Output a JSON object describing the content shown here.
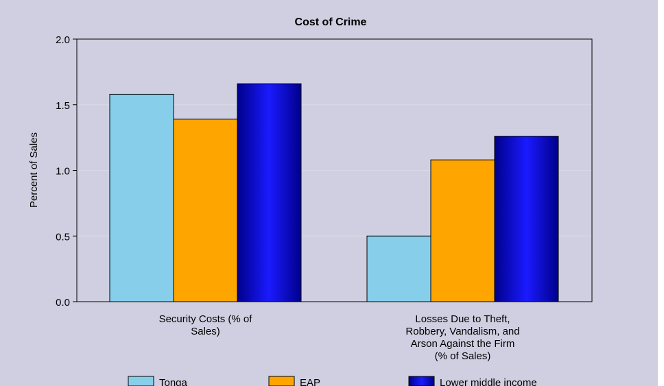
{
  "colors": {
    "background": "#cfcfe1",
    "plot_background": "#cfcfe1",
    "gridline": "#dadae6",
    "axis": "#000000"
  },
  "chart_data": {
    "type": "bar",
    "title": "Cost of Crime",
    "xlabel": "",
    "ylabel": "Percent of Sales",
    "ylim": [
      0,
      2.0
    ],
    "yticks": [
      0.0,
      0.5,
      1.0,
      1.5,
      2.0
    ],
    "ytick_labels": [
      "0.0",
      "0.5",
      "1.0",
      "1.5",
      "2.0"
    ],
    "grid": true,
    "legend_position": "bottom",
    "categories": [
      [
        "Security Costs (% of",
        "Sales)"
      ],
      [
        "Losses Due to Theft,",
        "Robbery, Vandalism, and",
        "Arson Against the Firm",
        "(% of Sales)"
      ]
    ],
    "series": [
      {
        "name": "Tonga",
        "values": [
          1.58,
          0.5
        ],
        "color": "#87ceeb",
        "style": "flat"
      },
      {
        "name": "EAP",
        "values": [
          1.39,
          1.08
        ],
        "color": "#ffa500",
        "style": "flat"
      },
      {
        "name": "Lower middle income",
        "values": [
          1.66,
          1.26
        ],
        "color": "#0000cd",
        "style": "gradient"
      }
    ]
  }
}
